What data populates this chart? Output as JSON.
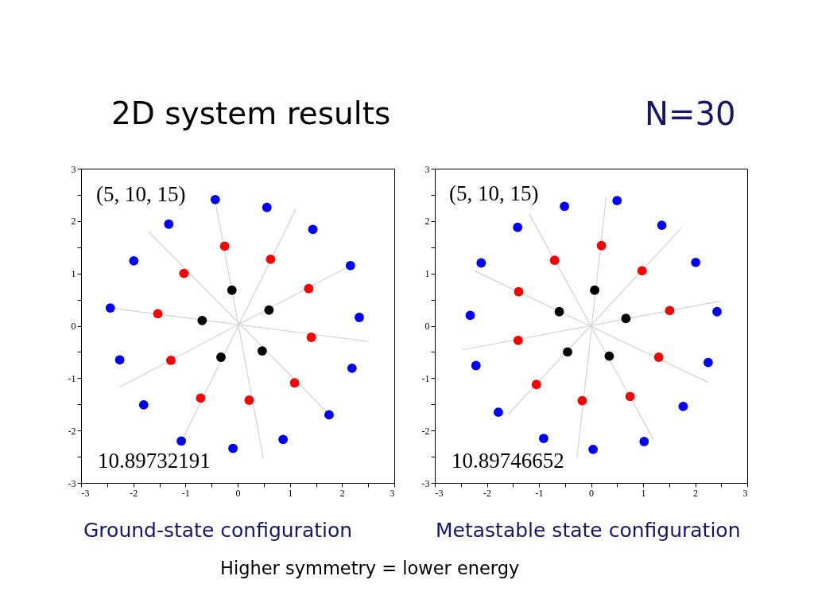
{
  "chart_data": [
    {
      "type": "scatter",
      "title": "2D system results",
      "annotations": [
        "(5, 10, 15)",
        "10.89732191",
        "Ground-state configuration",
        "N=30",
        "Higher symmetry = lower energy"
      ],
      "xlim": [
        -3,
        3
      ],
      "ylim": [
        -3,
        3
      ],
      "xticks": [
        -3,
        {
          "value": -2.5,
          "label": null
        },
        -2,
        {
          "value": -1.5,
          "label": null
        },
        -1,
        {
          "value": -0.5,
          "label": null
        },
        0,
        {
          "value": 0.5,
          "label": null
        },
        1,
        {
          "value": 1.5,
          "label": null
        },
        2,
        {
          "value": 2.5,
          "label": null
        },
        3
      ],
      "yticks": [
        -3,
        {
          "value": -2.5,
          "label": null
        },
        -2,
        {
          "value": -1.5,
          "label": null
        },
        -1,
        {
          "value": -0.5,
          "label": null
        },
        0,
        {
          "value": 0.5,
          "label": null
        },
        1,
        {
          "value": 1.5,
          "label": null
        },
        2,
        {
          "value": 2.5,
          "label": null
        },
        3
      ],
      "series": [
        {
          "type": "line",
          "color": "#d3d3d3",
          "line_style": "solid",
          "x": [
            -1.71,
            1.8
          ],
          "values": [
            1.8,
            -1.74
          ]
        },
        {
          "type": "line",
          "color": "#d3d3d3",
          "line_style": "solid",
          "x": [
            -0.43,
            0.49
          ],
          "values": [
            2.38,
            -2.53
          ]
        },
        {
          "type": "line",
          "color": "#d3d3d3",
          "line_style": "solid",
          "x": [
            1.12,
            -1.05
          ],
          "values": [
            2.24,
            -2.15
          ]
        },
        {
          "type": "line",
          "color": "#d3d3d3",
          "line_style": "solid",
          "x": [
            2.2,
            -2.26
          ],
          "values": [
            1.17,
            -1.17
          ]
        },
        {
          "type": "line",
          "color": "#d3d3d3",
          "line_style": "solid",
          "x": [
            -2.44,
            2.51
          ],
          "values": [
            0.34,
            -0.3
          ]
        },
        {
          "color": "#000000",
          "marker": "circle",
          "x": [
            -0.11,
            0.6,
            -0.68,
            0.47,
            -0.32
          ],
          "values": [
            0.68,
            0.3,
            0.1,
            -0.48,
            -0.6
          ]
        },
        {
          "color": "#ff0000",
          "marker": "circle",
          "x": [
            -0.25,
            0.63,
            -1.03,
            1.36,
            -1.53,
            1.41,
            -1.28,
            1.09,
            -0.71,
            0.22
          ],
          "values": [
            1.52,
            1.27,
            1.0,
            0.71,
            0.23,
            -0.22,
            -0.66,
            -1.09,
            -1.38,
            -1.42
          ]
        },
        {
          "color": "#0000ff",
          "marker": "circle",
          "x": [
            -0.43,
            0.56,
            -1.32,
            1.44,
            -1.99,
            2.16,
            -2.44,
            2.33,
            -2.26,
            2.19,
            -1.8,
            1.75,
            -1.08,
            0.87,
            -0.09
          ],
          "values": [
            2.41,
            2.26,
            1.94,
            1.84,
            1.24,
            1.15,
            0.34,
            0.16,
            -0.65,
            -0.81,
            -1.51,
            -1.7,
            -2.2,
            -2.17,
            -2.34
          ]
        }
      ]
    },
    {
      "type": "scatter",
      "annotations": [
        "(5, 10, 15)",
        "10.89746652",
        "Metastable state configuration"
      ],
      "xlim": [
        -3,
        3
      ],
      "ylim": [
        -3,
        3
      ],
      "xticks": [
        -3,
        {
          "value": -2.5,
          "label": null
        },
        -2,
        {
          "value": -1.5,
          "label": null
        },
        -1,
        {
          "value": -0.5,
          "label": null
        },
        0,
        {
          "value": 0.5,
          "label": null
        },
        1,
        {
          "value": 1.5,
          "label": null
        },
        2,
        {
          "value": 2.5,
          "label": null
        },
        3
      ],
      "yticks": [
        -3,
        {
          "value": -2.5,
          "label": null
        },
        -2,
        {
          "value": -1.5,
          "label": null
        },
        -1,
        {
          "value": -0.5,
          "label": null
        },
        0,
        {
          "value": 0.5,
          "label": null
        },
        1,
        {
          "value": 1.5,
          "label": null
        },
        2,
        {
          "value": 2.5,
          "label": null
        },
        3
      ],
      "series": [
        {
          "type": "line",
          "color": "#d3d3d3",
          "line_style": "solid",
          "x": [
            -1.19,
            1.2
          ],
          "values": [
            2.14,
            -2.17
          ]
        },
        {
          "type": "line",
          "color": "#d3d3d3",
          "line_style": "solid",
          "x": [
            0.29,
            -0.27
          ],
          "values": [
            2.45,
            -2.53
          ]
        },
        {
          "type": "line",
          "color": "#d3d3d3",
          "line_style": "solid",
          "x": [
            1.73,
            -1.59
          ],
          "values": [
            1.86,
            -1.69
          ]
        },
        {
          "type": "line",
          "color": "#d3d3d3",
          "line_style": "solid",
          "x": [
            2.47,
            -2.47
          ],
          "values": [
            0.47,
            -0.46
          ]
        },
        {
          "type": "line",
          "color": "#d3d3d3",
          "line_style": "solid",
          "x": [
            2.25,
            -2.24
          ],
          "values": [
            -1.08,
            1.05
          ]
        },
        {
          "color": "#000000",
          "marker": "circle",
          "x": [
            0.07,
            0.67,
            -0.61,
            -0.45,
            0.35
          ],
          "values": [
            0.68,
            0.14,
            0.27,
            -0.5,
            -0.58
          ]
        },
        {
          "color": "#ff0000",
          "marker": "circle",
          "x": [
            0.2,
            -0.7,
            0.98,
            -1.39,
            1.51,
            -1.4,
            1.3,
            -1.05,
            0.75,
            -0.17
          ],
          "values": [
            1.53,
            1.25,
            1.05,
            0.65,
            0.29,
            -0.28,
            -0.6,
            -1.12,
            -1.35,
            -1.43
          ]
        },
        {
          "color": "#0000ff",
          "marker": "circle",
          "x": [
            0.5,
            -0.51,
            1.36,
            -1.41,
            2.01,
            -2.11,
            2.42,
            -2.32,
            2.25,
            -2.21,
            1.77,
            -1.78,
            -0.91,
            1.02,
            0.04
          ],
          "values": [
            2.39,
            2.28,
            1.92,
            1.88,
            1.21,
            1.2,
            0.27,
            0.2,
            -0.7,
            -0.76,
            -1.54,
            -1.65,
            -2.15,
            -2.21,
            -2.36
          ]
        }
      ]
    }
  ]
}
